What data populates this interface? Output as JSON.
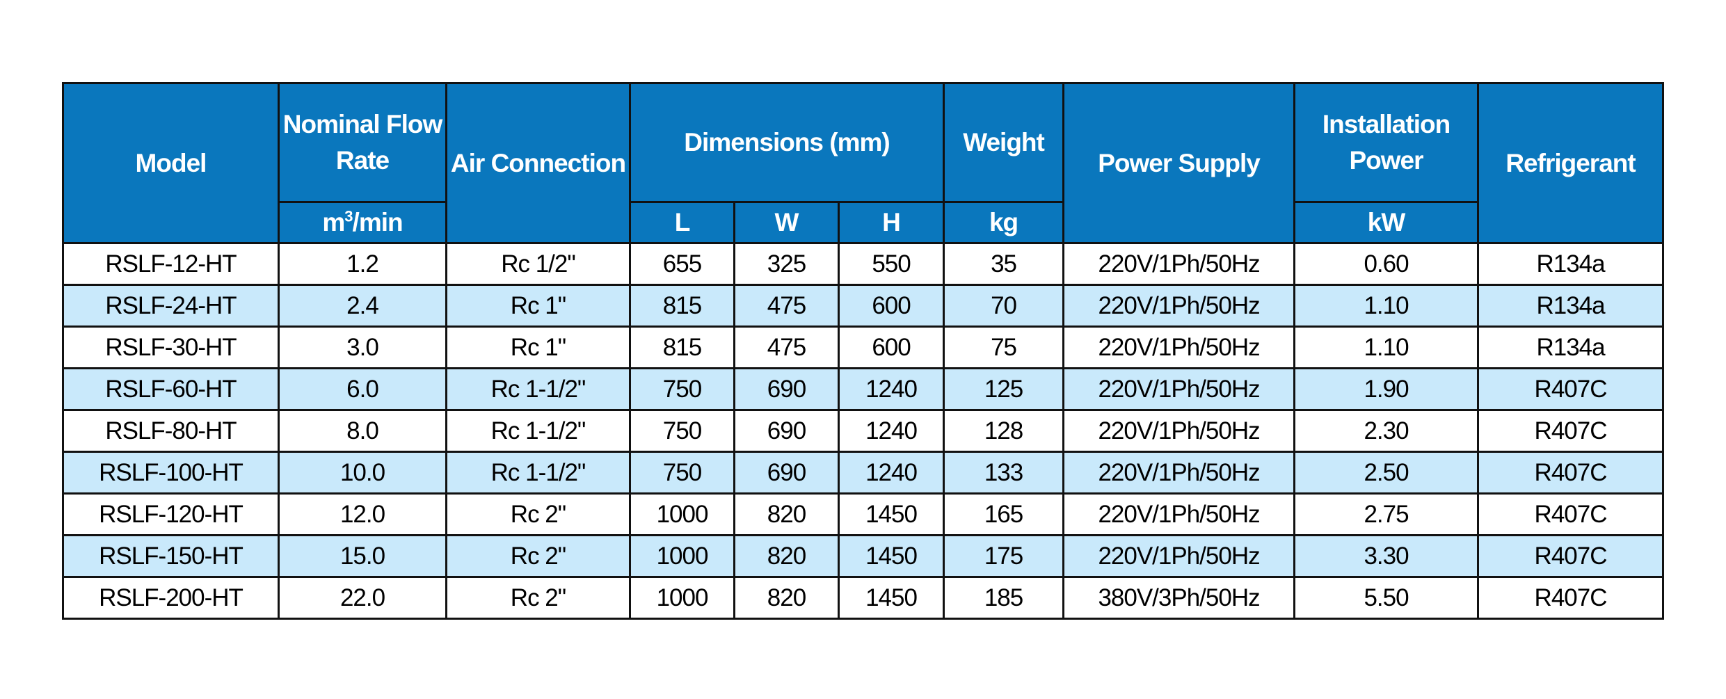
{
  "header": {
    "model": "Model",
    "flow_rate": "Nominal Flow Rate",
    "flow_rate_unit_base": "m",
    "flow_rate_unit_sup": "3",
    "flow_rate_unit_rest": "/min",
    "air_connection": "Air Connection",
    "dimensions": "Dimensions (mm)",
    "dim_l": "L",
    "dim_w": "W",
    "dim_h": "H",
    "weight": "Weight",
    "weight_unit": "kg",
    "power_supply": "Power Supply",
    "installation_power": "Installation Power",
    "installation_power_unit": "kW",
    "refrigerant": "Refrigerant"
  },
  "colors": {
    "header_bg": "#0a77bd",
    "alt_row_bg": "#c9e9fb"
  },
  "rows": [
    [
      "RSLF-12-HT",
      "1.2",
      "Rc 1/2\"",
      "655",
      "325",
      "550",
      "35",
      "220V/1Ph/50Hz",
      "0.60",
      "R134a"
    ],
    [
      "RSLF-24-HT",
      "2.4",
      "Rc 1\"",
      "815",
      "475",
      "600",
      "70",
      "220V/1Ph/50Hz",
      "1.10",
      "R134a"
    ],
    [
      "RSLF-30-HT",
      "3.0",
      "Rc 1\"",
      "815",
      "475",
      "600",
      "75",
      "220V/1Ph/50Hz",
      "1.10",
      "R134a"
    ],
    [
      "RSLF-60-HT",
      "6.0",
      "Rc 1-1/2\"",
      "750",
      "690",
      "1240",
      "125",
      "220V/1Ph/50Hz",
      "1.90",
      "R407C"
    ],
    [
      "RSLF-80-HT",
      "8.0",
      "Rc 1-1/2\"",
      "750",
      "690",
      "1240",
      "128",
      "220V/1Ph/50Hz",
      "2.30",
      "R407C"
    ],
    [
      "RSLF-100-HT",
      "10.0",
      "Rc 1-1/2\"",
      "750",
      "690",
      "1240",
      "133",
      "220V/1Ph/50Hz",
      "2.50",
      "R407C"
    ],
    [
      "RSLF-120-HT",
      "12.0",
      "Rc 2\"",
      "1000",
      "820",
      "1450",
      "165",
      "220V/1Ph/50Hz",
      "2.75",
      "R407C"
    ],
    [
      "RSLF-150-HT",
      "15.0",
      "Rc 2\"",
      "1000",
      "820",
      "1450",
      "175",
      "220V/1Ph/50Hz",
      "3.30",
      "R407C"
    ],
    [
      "RSLF-200-HT",
      "22.0",
      "Rc 2\"",
      "1000",
      "820",
      "1450",
      "185",
      "380V/3Ph/50Hz",
      "5.50",
      "R407C"
    ]
  ]
}
